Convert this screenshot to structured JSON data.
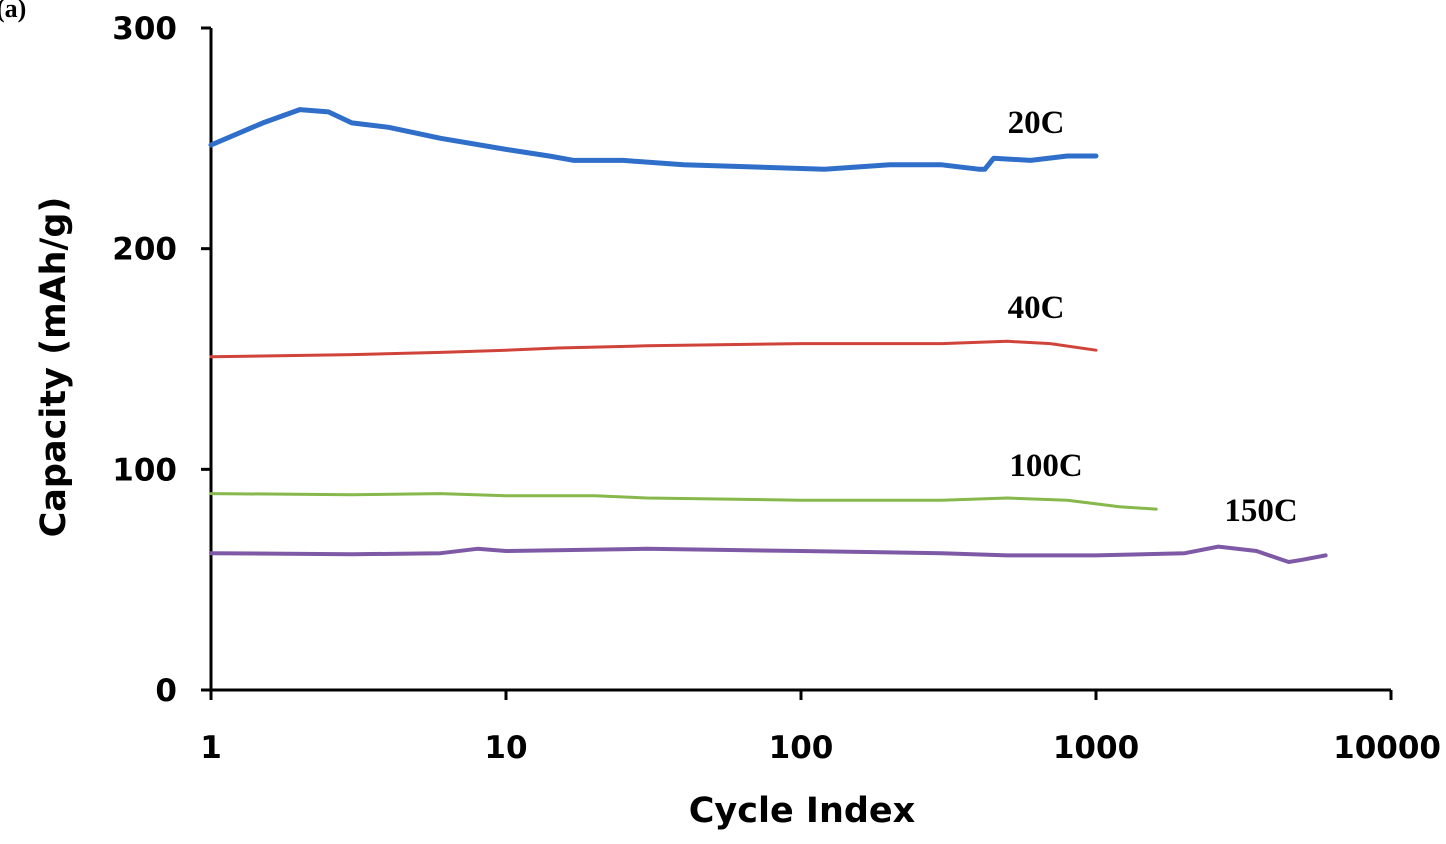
{
  "panel_label": "(a)",
  "chart_data": {
    "type": "line",
    "xlabel": "Cycle Index",
    "ylabel": "Capacity (mAh/g)",
    "xscale": "log",
    "xlim": [
      1,
      10000
    ],
    "ylim": [
      0,
      300
    ],
    "x_ticks": [
      1,
      10,
      100,
      1000,
      10000
    ],
    "x_tick_labels": [
      "1",
      "10",
      "100",
      "1000",
      "10000"
    ],
    "y_ticks": [
      0,
      100,
      200,
      300
    ],
    "y_tick_labels": [
      "0",
      "100",
      "200",
      "300"
    ],
    "grid": false,
    "legend": "none",
    "series": [
      {
        "name": "20C",
        "color": "#2f6fc9",
        "points": [
          [
            1,
            247
          ],
          [
            1.5,
            257
          ],
          [
            2,
            263
          ],
          [
            2.5,
            262
          ],
          [
            3,
            257
          ],
          [
            4,
            255
          ],
          [
            6,
            250
          ],
          [
            10,
            245
          ],
          [
            14,
            242
          ],
          [
            17,
            240
          ],
          [
            25,
            240
          ],
          [
            40,
            238
          ],
          [
            70,
            237
          ],
          [
            120,
            236
          ],
          [
            200,
            238
          ],
          [
            300,
            238
          ],
          [
            400,
            236
          ],
          [
            420,
            236
          ],
          [
            450,
            241
          ],
          [
            600,
            240
          ],
          [
            800,
            242
          ],
          [
            1000,
            242
          ]
        ]
      },
      {
        "name": "40C",
        "color": "#d0433a",
        "points": [
          [
            1,
            151
          ],
          [
            3,
            152
          ],
          [
            6,
            153
          ],
          [
            10,
            154
          ],
          [
            15,
            155
          ],
          [
            30,
            156
          ],
          [
            100,
            157
          ],
          [
            300,
            157
          ],
          [
            500,
            158
          ],
          [
            700,
            157
          ],
          [
            1000,
            154
          ]
        ]
      },
      {
        "name": "100C",
        "color": "#86b84b",
        "points": [
          [
            1,
            89
          ],
          [
            3,
            88.5
          ],
          [
            6,
            89
          ],
          [
            10,
            88
          ],
          [
            20,
            88
          ],
          [
            30,
            87
          ],
          [
            100,
            86
          ],
          [
            300,
            86
          ],
          [
            500,
            87
          ],
          [
            800,
            86
          ],
          [
            1200,
            83
          ],
          [
            1600,
            82
          ]
        ]
      },
      {
        "name": "150C",
        "color": "#7e5aa6",
        "points": [
          [
            1,
            62
          ],
          [
            3,
            61.5
          ],
          [
            6,
            62
          ],
          [
            8,
            64
          ],
          [
            10,
            63
          ],
          [
            30,
            64
          ],
          [
            100,
            63
          ],
          [
            300,
            62
          ],
          [
            500,
            61
          ],
          [
            1000,
            61
          ],
          [
            2000,
            62
          ],
          [
            2600,
            65
          ],
          [
            3500,
            63
          ],
          [
            4500,
            58
          ],
          [
            5000,
            59
          ],
          [
            6000,
            61
          ]
        ]
      }
    ]
  }
}
